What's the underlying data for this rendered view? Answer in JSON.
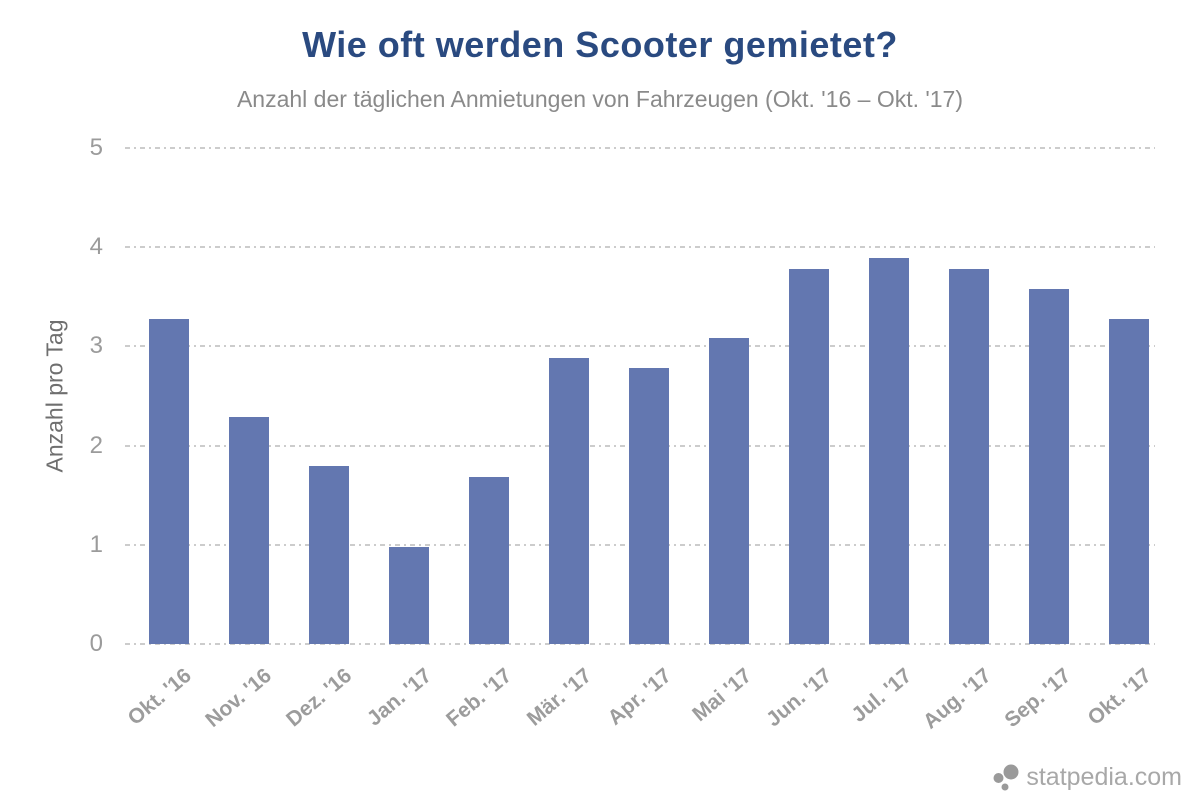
{
  "title": "Wie oft werden Scooter gemietet?",
  "subtitle": "Anzahl der täglichen Anmietungen von Fahrzeugen (Okt. '16 – Okt. '17)",
  "watermark": {
    "text": "statpedia.com"
  },
  "colors": {
    "bar": "#6377b0",
    "title": "#2a4a80",
    "subtitle": "#8a8a8a",
    "gridline": "#cccccc",
    "tick_label": "#9b9b9b",
    "axis_label": "#6f6f6f",
    "x_label": "#9c9c9c",
    "watermark": "#a8a8a8"
  },
  "chart_data": {
    "type": "bar",
    "title": "Wie oft werden Scooter gemietet?",
    "subtitle": "Anzahl der täglichen Anmietungen von Fahrzeugen (Okt. '16 – Okt. '17)",
    "categories": [
      "Okt. '16",
      "Nov. '16",
      "Dez. '16",
      "Jan. '17",
      "Feb. '17",
      "Mär. '17",
      "Apr. '17",
      "Mai '17",
      "Jun. '17",
      "Jul. '17",
      "Aug. '17",
      "Sep. '17",
      "Okt. '17"
    ],
    "values": [
      3.28,
      2.29,
      1.79,
      0.98,
      1.68,
      2.88,
      2.78,
      3.08,
      3.78,
      3.89,
      3.78,
      3.58,
      3.28
    ],
    "xlabel": "",
    "ylabel": "Anzahl pro Tag",
    "ylim": [
      0,
      5
    ],
    "yticks": [
      0,
      1,
      2,
      3,
      4,
      5
    ],
    "grid": "horizontal-dash-dot",
    "legend": "none",
    "bar_color": "#6377b0"
  }
}
